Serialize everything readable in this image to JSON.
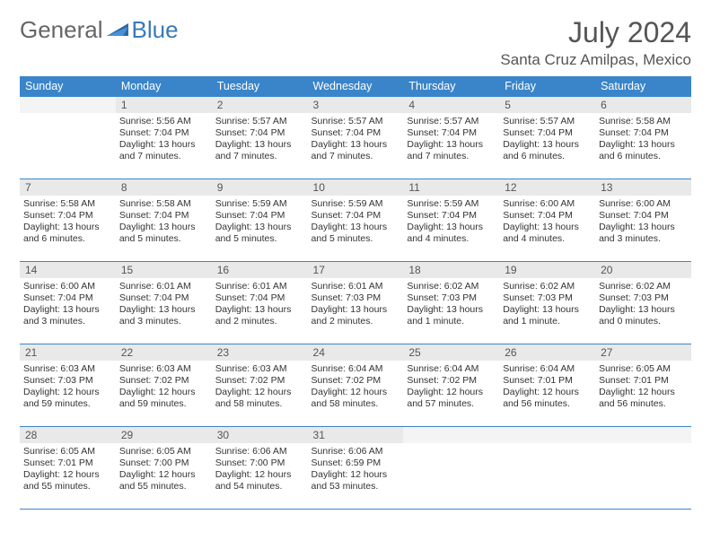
{
  "logo": {
    "text1": "General",
    "text2": "Blue"
  },
  "title": "July 2024",
  "location": "Santa Cruz Amilpas, Mexico",
  "colors": {
    "header_bg": "#3a85c9",
    "header_fg": "#ffffff",
    "daynum_bg": "#e9e9e9",
    "border": "#3a85c9",
    "text": "#333333",
    "logo_gray": "#666666",
    "logo_blue": "#3a7ab8"
  },
  "weekdays": [
    "Sunday",
    "Monday",
    "Tuesday",
    "Wednesday",
    "Thursday",
    "Friday",
    "Saturday"
  ],
  "weeks": [
    [
      {
        "n": "",
        "sr": "",
        "ss": "",
        "dl": ""
      },
      {
        "n": "1",
        "sr": "Sunrise: 5:56 AM",
        "ss": "Sunset: 7:04 PM",
        "dl": "Daylight: 13 hours and 7 minutes."
      },
      {
        "n": "2",
        "sr": "Sunrise: 5:57 AM",
        "ss": "Sunset: 7:04 PM",
        "dl": "Daylight: 13 hours and 7 minutes."
      },
      {
        "n": "3",
        "sr": "Sunrise: 5:57 AM",
        "ss": "Sunset: 7:04 PM",
        "dl": "Daylight: 13 hours and 7 minutes."
      },
      {
        "n": "4",
        "sr": "Sunrise: 5:57 AM",
        "ss": "Sunset: 7:04 PM",
        "dl": "Daylight: 13 hours and 7 minutes."
      },
      {
        "n": "5",
        "sr": "Sunrise: 5:57 AM",
        "ss": "Sunset: 7:04 PM",
        "dl": "Daylight: 13 hours and 6 minutes."
      },
      {
        "n": "6",
        "sr": "Sunrise: 5:58 AM",
        "ss": "Sunset: 7:04 PM",
        "dl": "Daylight: 13 hours and 6 minutes."
      }
    ],
    [
      {
        "n": "7",
        "sr": "Sunrise: 5:58 AM",
        "ss": "Sunset: 7:04 PM",
        "dl": "Daylight: 13 hours and 6 minutes."
      },
      {
        "n": "8",
        "sr": "Sunrise: 5:58 AM",
        "ss": "Sunset: 7:04 PM",
        "dl": "Daylight: 13 hours and 5 minutes."
      },
      {
        "n": "9",
        "sr": "Sunrise: 5:59 AM",
        "ss": "Sunset: 7:04 PM",
        "dl": "Daylight: 13 hours and 5 minutes."
      },
      {
        "n": "10",
        "sr": "Sunrise: 5:59 AM",
        "ss": "Sunset: 7:04 PM",
        "dl": "Daylight: 13 hours and 5 minutes."
      },
      {
        "n": "11",
        "sr": "Sunrise: 5:59 AM",
        "ss": "Sunset: 7:04 PM",
        "dl": "Daylight: 13 hours and 4 minutes."
      },
      {
        "n": "12",
        "sr": "Sunrise: 6:00 AM",
        "ss": "Sunset: 7:04 PM",
        "dl": "Daylight: 13 hours and 4 minutes."
      },
      {
        "n": "13",
        "sr": "Sunrise: 6:00 AM",
        "ss": "Sunset: 7:04 PM",
        "dl": "Daylight: 13 hours and 3 minutes."
      }
    ],
    [
      {
        "n": "14",
        "sr": "Sunrise: 6:00 AM",
        "ss": "Sunset: 7:04 PM",
        "dl": "Daylight: 13 hours and 3 minutes."
      },
      {
        "n": "15",
        "sr": "Sunrise: 6:01 AM",
        "ss": "Sunset: 7:04 PM",
        "dl": "Daylight: 13 hours and 3 minutes."
      },
      {
        "n": "16",
        "sr": "Sunrise: 6:01 AM",
        "ss": "Sunset: 7:04 PM",
        "dl": "Daylight: 13 hours and 2 minutes."
      },
      {
        "n": "17",
        "sr": "Sunrise: 6:01 AM",
        "ss": "Sunset: 7:03 PM",
        "dl": "Daylight: 13 hours and 2 minutes."
      },
      {
        "n": "18",
        "sr": "Sunrise: 6:02 AM",
        "ss": "Sunset: 7:03 PM",
        "dl": "Daylight: 13 hours and 1 minute."
      },
      {
        "n": "19",
        "sr": "Sunrise: 6:02 AM",
        "ss": "Sunset: 7:03 PM",
        "dl": "Daylight: 13 hours and 1 minute."
      },
      {
        "n": "20",
        "sr": "Sunrise: 6:02 AM",
        "ss": "Sunset: 7:03 PM",
        "dl": "Daylight: 13 hours and 0 minutes."
      }
    ],
    [
      {
        "n": "21",
        "sr": "Sunrise: 6:03 AM",
        "ss": "Sunset: 7:03 PM",
        "dl": "Daylight: 12 hours and 59 minutes."
      },
      {
        "n": "22",
        "sr": "Sunrise: 6:03 AM",
        "ss": "Sunset: 7:02 PM",
        "dl": "Daylight: 12 hours and 59 minutes."
      },
      {
        "n": "23",
        "sr": "Sunrise: 6:03 AM",
        "ss": "Sunset: 7:02 PM",
        "dl": "Daylight: 12 hours and 58 minutes."
      },
      {
        "n": "24",
        "sr": "Sunrise: 6:04 AM",
        "ss": "Sunset: 7:02 PM",
        "dl": "Daylight: 12 hours and 58 minutes."
      },
      {
        "n": "25",
        "sr": "Sunrise: 6:04 AM",
        "ss": "Sunset: 7:02 PM",
        "dl": "Daylight: 12 hours and 57 minutes."
      },
      {
        "n": "26",
        "sr": "Sunrise: 6:04 AM",
        "ss": "Sunset: 7:01 PM",
        "dl": "Daylight: 12 hours and 56 minutes."
      },
      {
        "n": "27",
        "sr": "Sunrise: 6:05 AM",
        "ss": "Sunset: 7:01 PM",
        "dl": "Daylight: 12 hours and 56 minutes."
      }
    ],
    [
      {
        "n": "28",
        "sr": "Sunrise: 6:05 AM",
        "ss": "Sunset: 7:01 PM",
        "dl": "Daylight: 12 hours and 55 minutes."
      },
      {
        "n": "29",
        "sr": "Sunrise: 6:05 AM",
        "ss": "Sunset: 7:00 PM",
        "dl": "Daylight: 12 hours and 55 minutes."
      },
      {
        "n": "30",
        "sr": "Sunrise: 6:06 AM",
        "ss": "Sunset: 7:00 PM",
        "dl": "Daylight: 12 hours and 54 minutes."
      },
      {
        "n": "31",
        "sr": "Sunrise: 6:06 AM",
        "ss": "Sunset: 6:59 PM",
        "dl": "Daylight: 12 hours and 53 minutes."
      },
      {
        "n": "",
        "sr": "",
        "ss": "",
        "dl": ""
      },
      {
        "n": "",
        "sr": "",
        "ss": "",
        "dl": ""
      },
      {
        "n": "",
        "sr": "",
        "ss": "",
        "dl": ""
      }
    ]
  ]
}
